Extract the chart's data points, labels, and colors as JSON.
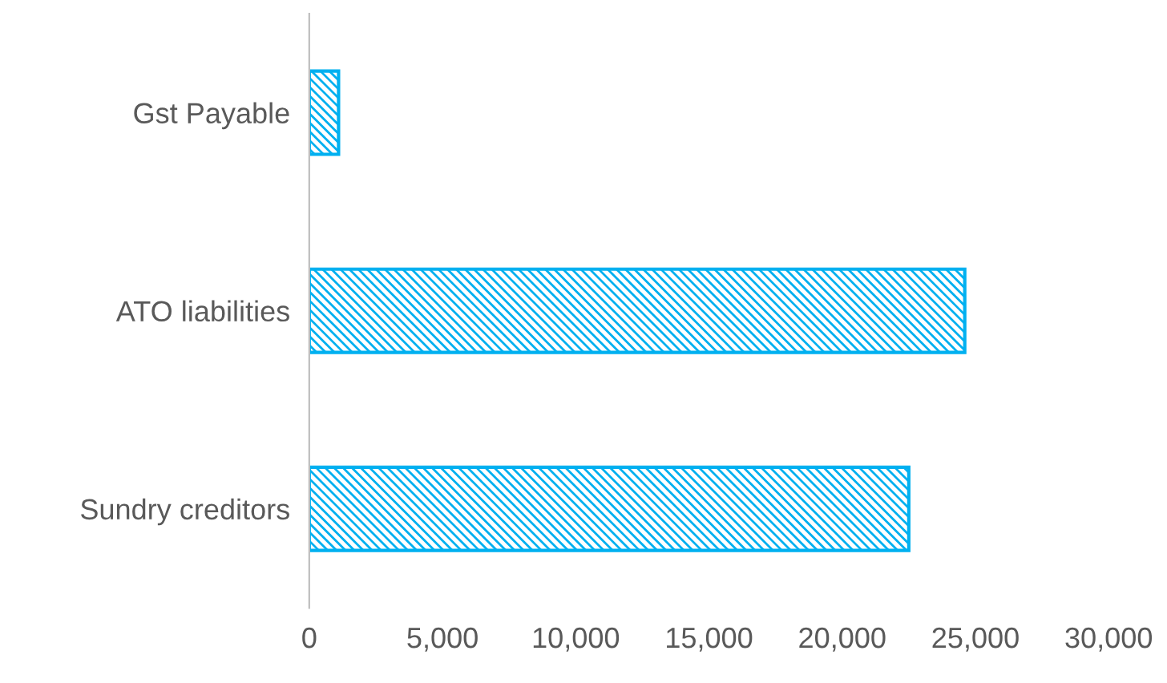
{
  "chart_data": {
    "type": "bar",
    "orientation": "horizontal",
    "categories": [
      "Gst Payable",
      "ATO liabilities",
      "Sundry creditors"
    ],
    "series": [
      {
        "color": "#00b0f0",
        "values": [
          1100,
          24600,
          22500
        ]
      }
    ],
    "xlim": [
      0,
      30000
    ],
    "xticks": [
      {
        "value": 0,
        "label": "0"
      },
      {
        "value": 5000,
        "label": "5,000"
      },
      {
        "value": 10000,
        "label": "10,000"
      },
      {
        "value": 15000,
        "label": "15,000"
      },
      {
        "value": 20000,
        "label": "20,000"
      },
      {
        "value": 25000,
        "label": "25,000"
      },
      {
        "value": 30000,
        "label": "30,000"
      }
    ],
    "grid": false,
    "legend": false
  }
}
